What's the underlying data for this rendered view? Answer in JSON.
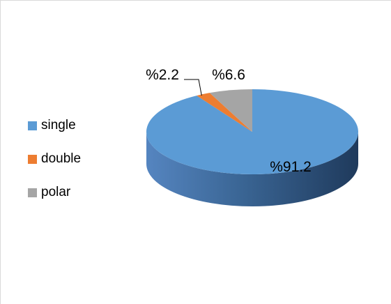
{
  "chart_data": {
    "type": "pie",
    "style": "3d",
    "categories": [
      "single",
      "double",
      "polar"
    ],
    "values": [
      91.2,
      2.2,
      6.6
    ],
    "colors": [
      "#5B9BD5",
      "#ED7D31",
      "#A5A5A5"
    ],
    "data_labels": [
      "%91.2",
      "%2.2",
      "%6.6"
    ],
    "legend_position": "left"
  }
}
